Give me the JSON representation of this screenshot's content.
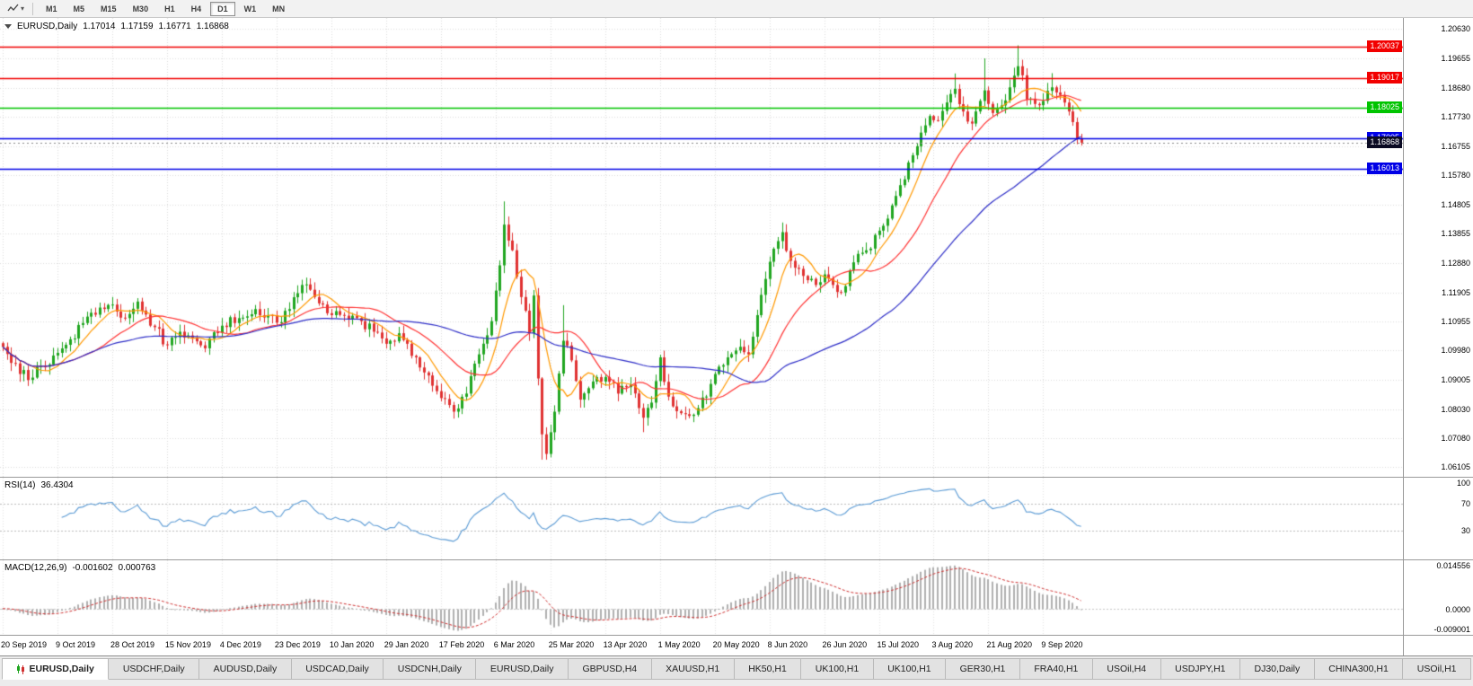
{
  "toolbar": {
    "timeframes": [
      "M1",
      "M5",
      "M15",
      "M30",
      "H1",
      "H4",
      "D1",
      "W1",
      "MN"
    ],
    "active_timeframe": "D1"
  },
  "chart": {
    "symbol_period": "EURUSD,Daily",
    "open": "1.17014",
    "high": "1.17159",
    "low": "1.16771",
    "close": "1.16868"
  },
  "chart_data": {
    "type": "candlestick",
    "symbol": "EURUSD",
    "timeframe": "Daily",
    "candle_count": 257,
    "x_labels": [
      "20 Sep 2019",
      "9 Oct 2019",
      "28 Oct 2019",
      "15 Nov 2019",
      "4 Dec 2019",
      "23 Dec 2019",
      "10 Jan 2020",
      "29 Jan 2020",
      "17 Feb 2020",
      "6 Mar 2020",
      "25 Mar 2020",
      "13 Apr 2020",
      "1 May 2020",
      "20 May 2020",
      "8 Jun 2020",
      "26 Jun 2020",
      "15 Jul 2020",
      "3 Aug 2020",
      "21 Aug 2020",
      "9 Sep 2020"
    ],
    "x_label_indices": [
      0,
      13,
      26,
      39,
      52,
      65,
      78,
      91,
      104,
      117,
      130,
      143,
      156,
      169,
      182,
      195,
      208,
      221,
      234,
      247
    ],
    "y_axis_ticks": [
      "1.20630",
      "1.19655",
      "1.18680",
      "1.17730",
      "1.16755",
      "1.15780",
      "1.14805",
      "1.13855",
      "1.12880",
      "1.11905",
      "1.10955",
      "1.09980",
      "1.09005",
      "1.08030",
      "1.07080",
      "1.06105"
    ],
    "close_anchors": [
      [
        0,
        1.101
      ],
      [
        3,
        1.0955
      ],
      [
        6,
        1.09
      ],
      [
        9,
        1.0945
      ],
      [
        13,
        1.099
      ],
      [
        16,
        1.1035
      ],
      [
        20,
        1.111
      ],
      [
        23,
        1.114
      ],
      [
        26,
        1.115
      ],
      [
        29,
        1.1105
      ],
      [
        32,
        1.116
      ],
      [
        36,
        1.1075
      ],
      [
        39,
        1.1015
      ],
      [
        42,
        1.106
      ],
      [
        45,
        1.104
      ],
      [
        48,
        1.1005
      ],
      [
        52,
        1.108
      ],
      [
        56,
        1.1105
      ],
      [
        60,
        1.1135
      ],
      [
        63,
        1.1115
      ],
      [
        65,
        1.109
      ],
      [
        68,
        1.1135
      ],
      [
        71,
        1.1215
      ],
      [
        74,
        1.1175
      ],
      [
        78,
        1.1115
      ],
      [
        82,
        1.11
      ],
      [
        85,
        1.1095
      ],
      [
        88,
        1.106
      ],
      [
        91,
        1.102
      ],
      [
        94,
        1.1055
      ],
      [
        98,
        1.0975
      ],
      [
        101,
        1.0915
      ],
      [
        104,
        1.084
      ],
      [
        107,
        1.0795
      ],
      [
        110,
        1.0855
      ],
      [
        113,
        1.0985
      ],
      [
        116,
        1.1095
      ],
      [
        118,
        1.128
      ],
      [
        119,
        1.1415
      ],
      [
        121,
        1.133
      ],
      [
        123,
        1.1175
      ],
      [
        125,
        1.1055
      ],
      [
        126,
        1.118
      ],
      [
        127,
        1.0905
      ],
      [
        128,
        1.072
      ],
      [
        129,
        1.0655
      ],
      [
        131,
        1.0795
      ],
      [
        133,
        1.103
      ],
      [
        135,
        1.0965
      ],
      [
        137,
        1.0835
      ],
      [
        140,
        1.0895
      ],
      [
        143,
        1.091
      ],
      [
        146,
        1.0855
      ],
      [
        149,
        1.0885
      ],
      [
        152,
        1.0775
      ],
      [
        154,
        1.0825
      ],
      [
        156,
        1.0975
      ],
      [
        158,
        1.0845
      ],
      [
        161,
        1.079
      ],
      [
        164,
        1.0785
      ],
      [
        167,
        1.0845
      ],
      [
        169,
        1.092
      ],
      [
        172,
        1.0975
      ],
      [
        175,
        1.101
      ],
      [
        177,
        1.0985
      ],
      [
        179,
        1.1115
      ],
      [
        181,
        1.1235
      ],
      [
        183,
        1.1335
      ],
      [
        185,
        1.139
      ],
      [
        187,
        1.1295
      ],
      [
        190,
        1.1245
      ],
      [
        193,
        1.1215
      ],
      [
        195,
        1.125
      ],
      [
        197,
        1.1215
      ],
      [
        199,
        1.119
      ],
      [
        202,
        1.129
      ],
      [
        205,
        1.133
      ],
      [
        208,
        1.1395
      ],
      [
        210,
        1.1435
      ],
      [
        212,
        1.151
      ],
      [
        214,
        1.1565
      ],
      [
        216,
        1.1645
      ],
      [
        218,
        1.172
      ],
      [
        220,
        1.1775
      ],
      [
        222,
        1.176
      ],
      [
        224,
        1.182
      ],
      [
        226,
        1.1865
      ],
      [
        228,
        1.179
      ],
      [
        230,
        1.175
      ],
      [
        232,
        1.1825
      ],
      [
        233,
        1.186
      ],
      [
        235,
        1.1785
      ],
      [
        237,
        1.181
      ],
      [
        239,
        1.187
      ],
      [
        241,
        1.194
      ],
      [
        242,
        1.191
      ],
      [
        243,
        1.183
      ],
      [
        245,
        1.1815
      ],
      [
        247,
        1.1825
      ],
      [
        249,
        1.187
      ],
      [
        251,
        1.1845
      ],
      [
        253,
        1.179
      ],
      [
        254,
        1.1755
      ],
      [
        255,
        1.1701
      ],
      [
        256,
        1.16868
      ]
    ],
    "wick_high_overrides": {
      "119": 1.1492,
      "126": 1.119,
      "133": 1.1148,
      "185": 1.1422,
      "226": 1.1916,
      "233": 1.1966,
      "241": 1.2009,
      "249": 1.1917
    },
    "wick_low_overrides": {
      "107": 1.0778,
      "128": 1.0636,
      "129": 1.0636,
      "152": 1.0727,
      "164": 1.0766,
      "256": 1.16771
    },
    "last_candle": {
      "open": 1.17014,
      "high": 1.17159,
      "low": 1.16771,
      "close": 1.16868
    },
    "horizontal_lines": [
      {
        "price": 1.20037,
        "label": "1.20037",
        "color": "#F20000"
      },
      {
        "price": 1.19017,
        "label": "1.19017",
        "color": "#F20000"
      },
      {
        "price": 1.18025,
        "label": "1.18025",
        "color": "#00C400"
      },
      {
        "price": 1.17005,
        "label": "1.17005",
        "color": "#0000E6"
      },
      {
        "price": 1.16013,
        "label": "1.16013",
        "color": "#0000E6"
      }
    ],
    "current_price": {
      "value": 1.16868,
      "label": "1.16868",
      "bg": "#0a0a23"
    },
    "moving_averages": [
      {
        "period": 8,
        "color": "#FF9900"
      },
      {
        "period": 21,
        "color": "#FF3333"
      },
      {
        "period": 55,
        "color": "#2E2EC8"
      }
    ],
    "colors": {
      "up": "#21A621",
      "down": "#E03232",
      "grid": "#DCDCDC",
      "rsi": "#5B9BD5",
      "macd_hist": "#B0B0B0",
      "macd_signal": "#D03030"
    },
    "indicators": {
      "rsi": {
        "label": "RSI(14)",
        "value": "36.4304",
        "levels": [
          100,
          70,
          30
        ]
      },
      "macd": {
        "label": "MACD(12,26,9)",
        "main": "-0.001602",
        "signal": "0.000763",
        "axis_max": "0.014556",
        "axis_zero": "0.0000",
        "axis_min": "-0.009001"
      }
    }
  },
  "tabs": {
    "active_index": 0,
    "items": [
      "EURUSD,Daily",
      "USDCHF,Daily",
      "AUDUSD,Daily",
      "USDCAD,Daily",
      "USDCNH,Daily",
      "EURUSD,Daily",
      "GBPUSD,H4",
      "XAUUSD,H1",
      "HK50,H1",
      "UK100,H1",
      "UK100,H1",
      "GER30,H1",
      "FRA40,H1",
      "USOil,H4",
      "USDJPY,H1",
      "DJ30,Daily",
      "CHINA300,H1",
      "USOil,H1"
    ]
  }
}
